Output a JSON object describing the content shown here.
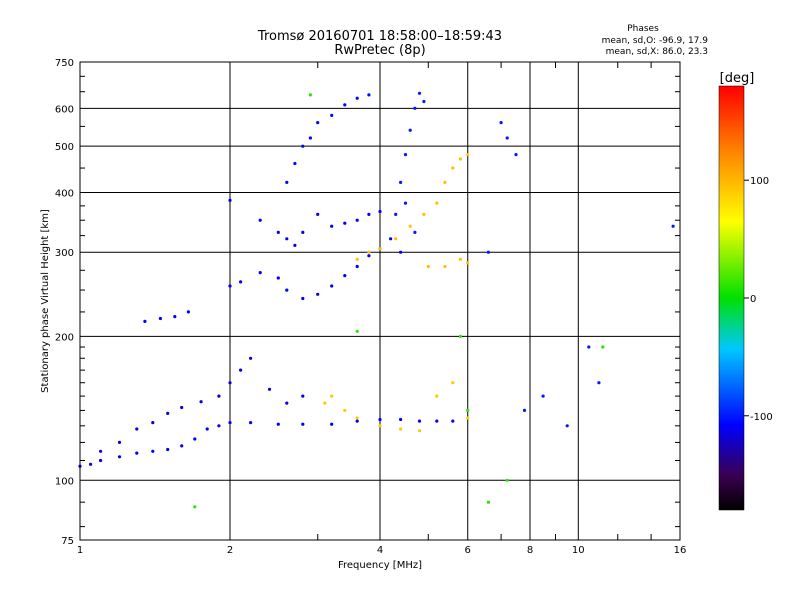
{
  "chart_data": {
    "type": "scatter",
    "title": "Tromsø 20160701 18:58:00–18:59:43",
    "subtitle": "RwPretec (8p)",
    "xlabel": "Frequency [MHz]",
    "ylabel": "Stationary phase Virtual Height [km]",
    "x_scale": "log",
    "y_scale": "log",
    "xlim": [
      1,
      16
    ],
    "ylim": [
      75,
      750
    ],
    "x_ticks": [
      1,
      2,
      4,
      6,
      8,
      10,
      16
    ],
    "x_tick_labels": [
      "1",
      "2",
      "4",
      "6",
      "8",
      "10",
      "16"
    ],
    "y_ticks": [
      75,
      100,
      200,
      300,
      400,
      500,
      600,
      750
    ],
    "y_tick_labels": [
      "75",
      "100",
      "200",
      "300",
      "400",
      "500",
      "600",
      "750"
    ],
    "grid": true,
    "info": {
      "heading": "Phases",
      "line_o": "mean, sd,O: -96.9, 17.9",
      "line_x": "mean, sd,X:  86.0, 23.3"
    },
    "colorbar": {
      "label": "[deg]",
      "min": -180,
      "max": 180,
      "ticks": [
        100,
        0,
        -100
      ],
      "tick_labels": [
        "100",
        "0",
        "-100"
      ]
    },
    "series": [
      {
        "name": "",
        "color_phase": -110,
        "points": [
          [
            1.0,
            107
          ],
          [
            1.05,
            108
          ],
          [
            1.1,
            110
          ],
          [
            1.2,
            112
          ],
          [
            1.3,
            114
          ],
          [
            1.4,
            115
          ],
          [
            1.5,
            116
          ],
          [
            1.6,
            118
          ],
          [
            1.7,
            122
          ],
          [
            1.8,
            128
          ],
          [
            1.9,
            130
          ],
          [
            2.0,
            132
          ],
          [
            2.2,
            132
          ],
          [
            2.5,
            131
          ],
          [
            2.8,
            131
          ],
          [
            3.2,
            131
          ],
          [
            3.6,
            133
          ],
          [
            4.0,
            134
          ],
          [
            4.4,
            134
          ],
          [
            4.8,
            133
          ],
          [
            5.2,
            133
          ],
          [
            5.6,
            133
          ]
        ]
      },
      {
        "name": "",
        "color_phase": -115,
        "points": [
          [
            1.1,
            115
          ],
          [
            1.2,
            120
          ],
          [
            1.3,
            128
          ],
          [
            1.4,
            132
          ],
          [
            1.5,
            138
          ],
          [
            1.6,
            142
          ],
          [
            1.75,
            146
          ],
          [
            1.9,
            150
          ],
          [
            2.0,
            160
          ],
          [
            2.1,
            170
          ],
          [
            2.2,
            180
          ],
          [
            2.4,
            155
          ],
          [
            2.6,
            145
          ],
          [
            2.8,
            150
          ]
        ]
      },
      {
        "name": "",
        "color_phase": -110,
        "points": [
          [
            1.35,
            215
          ],
          [
            1.45,
            218
          ],
          [
            1.55,
            220
          ],
          [
            1.65,
            225
          ],
          [
            2.0,
            255
          ],
          [
            2.1,
            260
          ],
          [
            2.3,
            272
          ],
          [
            2.5,
            265
          ],
          [
            2.6,
            250
          ],
          [
            2.8,
            240
          ],
          [
            3.0,
            245
          ],
          [
            3.2,
            255
          ],
          [
            3.4,
            268
          ],
          [
            3.6,
            280
          ],
          [
            3.8,
            295
          ],
          [
            4.0,
            305
          ],
          [
            4.2,
            320
          ],
          [
            4.4,
            300
          ]
        ]
      },
      {
        "name": "",
        "color_phase": -112,
        "points": [
          [
            2.0,
            385
          ],
          [
            2.3,
            350
          ],
          [
            2.5,
            330
          ],
          [
            2.6,
            320
          ],
          [
            2.7,
            310
          ],
          [
            2.8,
            330
          ],
          [
            3.0,
            360
          ],
          [
            3.2,
            340
          ],
          [
            3.4,
            345
          ],
          [
            3.6,
            350
          ],
          [
            3.8,
            360
          ],
          [
            4.0,
            365
          ]
        ]
      },
      {
        "name": "",
        "color_phase": -105,
        "points": [
          [
            2.6,
            420
          ],
          [
            2.7,
            460
          ],
          [
            2.8,
            500
          ],
          [
            2.9,
            520
          ],
          [
            3.0,
            560
          ],
          [
            3.2,
            580
          ],
          [
            3.4,
            610
          ],
          [
            3.6,
            630
          ],
          [
            3.8,
            640
          ]
        ]
      },
      {
        "name": "",
        "color_phase": -100,
        "points": [
          [
            4.3,
            360
          ],
          [
            4.4,
            420
          ],
          [
            4.5,
            480
          ],
          [
            4.6,
            540
          ],
          [
            4.7,
            600
          ],
          [
            4.8,
            645
          ],
          [
            4.9,
            620
          ],
          [
            4.5,
            380
          ],
          [
            4.7,
            330
          ]
        ]
      },
      {
        "name": "",
        "color_phase": 95,
        "points": [
          [
            3.6,
            290
          ],
          [
            3.8,
            300
          ],
          [
            4.0,
            305
          ],
          [
            4.3,
            320
          ],
          [
            4.6,
            340
          ],
          [
            4.9,
            360
          ],
          [
            5.2,
            380
          ],
          [
            5.4,
            420
          ],
          [
            5.6,
            450
          ],
          [
            5.8,
            470
          ],
          [
            6.0,
            480
          ],
          [
            5.0,
            280
          ],
          [
            5.4,
            280
          ],
          [
            5.8,
            290
          ],
          [
            6.0,
            285
          ]
        ]
      },
      {
        "name": "",
        "color_phase": 90,
        "points": [
          [
            3.1,
            145
          ],
          [
            3.2,
            150
          ],
          [
            3.4,
            140
          ],
          [
            3.6,
            135
          ],
          [
            4.0,
            130
          ],
          [
            4.4,
            128
          ],
          [
            4.8,
            127
          ],
          [
            5.2,
            150
          ],
          [
            5.6,
            160
          ],
          [
            6.0,
            135
          ]
        ]
      },
      {
        "name": "",
        "color_phase": -100,
        "points": [
          [
            7.0,
            560
          ],
          [
            7.2,
            520
          ],
          [
            7.5,
            480
          ],
          [
            6.6,
            300
          ],
          [
            7.8,
            140
          ],
          [
            8.5,
            150
          ],
          [
            9.5,
            130
          ],
          [
            10.5,
            190
          ],
          [
            11.0,
            160
          ],
          [
            15.5,
            340
          ]
        ]
      },
      {
        "name": "",
        "color_phase": 10,
        "points": [
          [
            2.9,
            640
          ],
          [
            3.6,
            205
          ],
          [
            5.8,
            200
          ],
          [
            6.6,
            90
          ],
          [
            7.2,
            100
          ],
          [
            1.7,
            88
          ],
          [
            11.2,
            190
          ],
          [
            6.0,
            140
          ]
        ]
      }
    ]
  }
}
